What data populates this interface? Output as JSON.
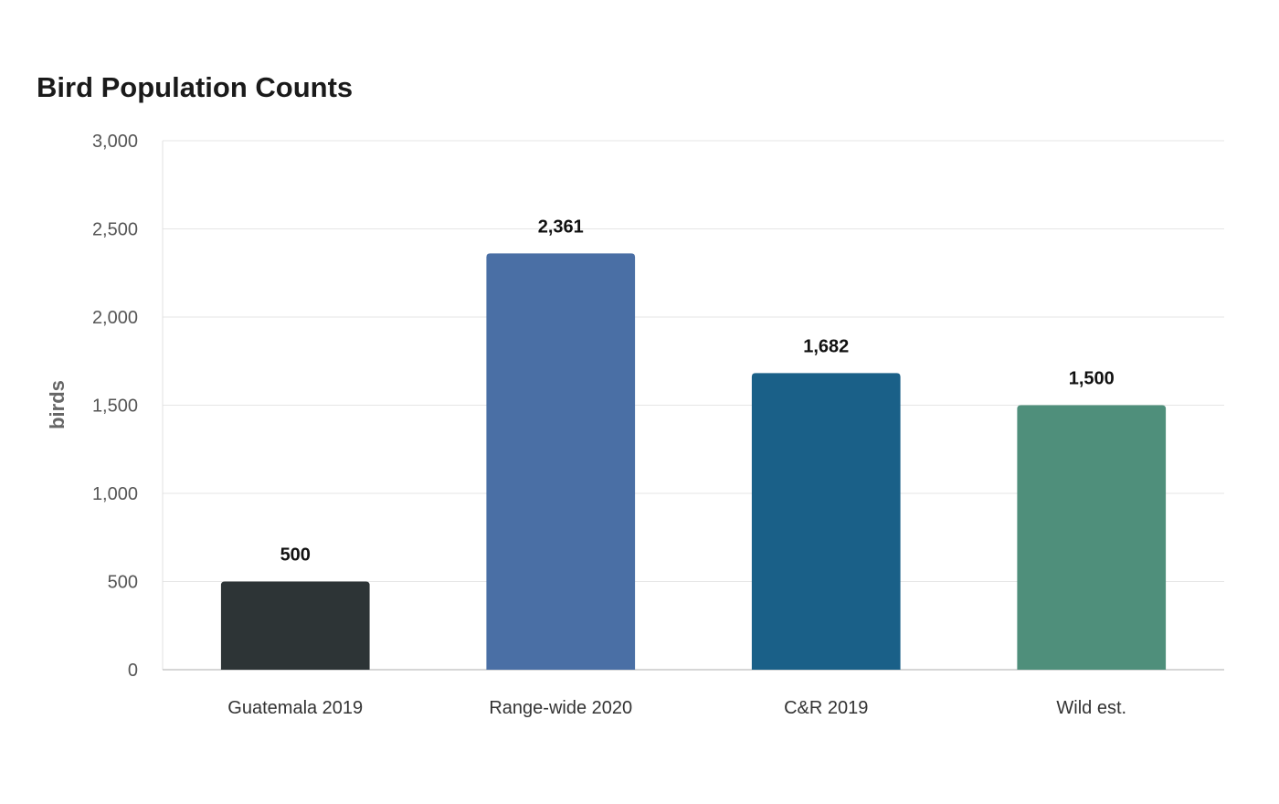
{
  "chart_data": {
    "type": "bar",
    "title": "Bird Population Counts",
    "xlabel": "",
    "ylabel": "birds",
    "categories": [
      "Guatemala 2019",
      "Range-wide 2020",
      "C&R 2019",
      "Wild est."
    ],
    "values": [
      500,
      2361,
      1682,
      1500
    ],
    "value_labels": [
      "500",
      "2,361",
      "1,682",
      "1,500"
    ],
    "colors": [
      "#2d3436",
      "#4a6fa5",
      "#1a6088",
      "#4f8f7b"
    ],
    "ylim": [
      0,
      3000
    ],
    "yticks": [
      0,
      500,
      1000,
      1500,
      2000,
      2500,
      3000
    ],
    "ytick_labels": [
      "0",
      "500",
      "1,000",
      "1,500",
      "2,000",
      "2,500",
      "3,000"
    ],
    "grid": true,
    "legend": "none"
  }
}
